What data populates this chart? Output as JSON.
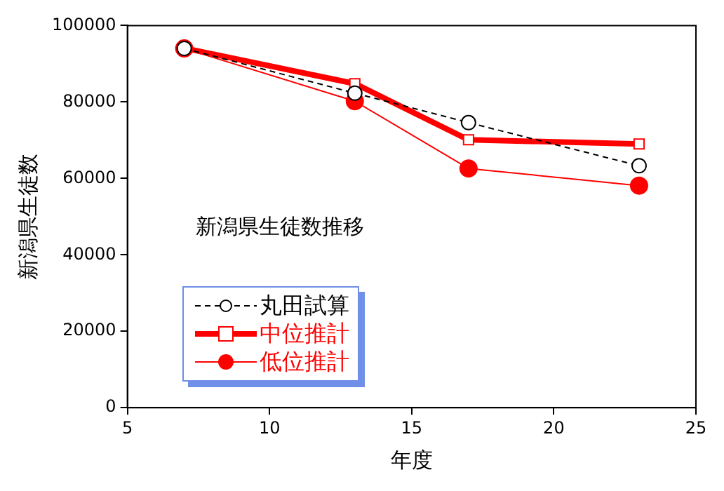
{
  "chart_data": {
    "type": "line",
    "xlabel": "年度",
    "ylabel": "新潟県生徒数",
    "annotations": [
      "新潟県生徒数推移"
    ],
    "x": [
      7,
      13,
      17,
      23
    ],
    "series": [
      {
        "name": "丸田試算",
        "color": "#000000",
        "values": [
          94000,
          82300,
          74600,
          63300
        ],
        "marker": "circle",
        "line_style": "dashed"
      },
      {
        "name": "中位推計",
        "color": "#ff0000",
        "values": [
          94100,
          84800,
          70100,
          69000
        ],
        "marker": "square",
        "line_style": "solid"
      },
      {
        "name": "低位推計",
        "color": "#ff0000",
        "values": [
          94000,
          80200,
          62600,
          58100
        ],
        "marker": "circle",
        "line_style": "solid"
      }
    ],
    "xlim": [
      5,
      25
    ],
    "xticks": [
      5,
      10,
      15,
      20,
      25
    ],
    "ylim": [
      0,
      100000
    ],
    "yticks": [
      0,
      20000,
      40000,
      60000,
      80000,
      100000
    ],
    "grid": false,
    "legend": "bottom left"
  }
}
